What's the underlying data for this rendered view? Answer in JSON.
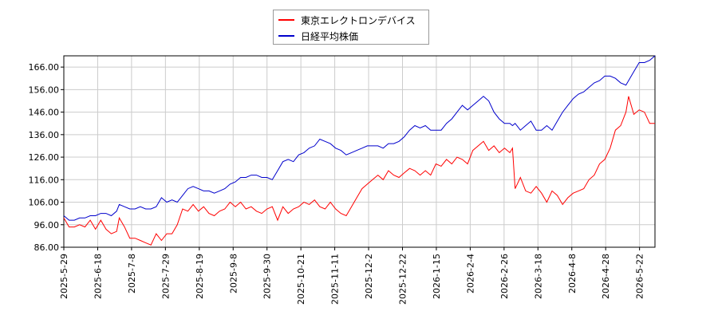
{
  "chart_data": {
    "type": "line",
    "legend_position": "top-center",
    "grid": true,
    "ylim": [
      86.0,
      171.0
    ],
    "yticks": [
      "86.00",
      "96.00",
      "106.00",
      "116.00",
      "126.00",
      "136.00",
      "146.00",
      "156.00",
      "166.00"
    ],
    "xticks": [
      "2025-5-29",
      "2025-6-18",
      "2025-7-8",
      "2025-7-29",
      "2025-8-19",
      "2025-9-8",
      "2025-9-30",
      "2025-10-21",
      "2025-11-11",
      "2025-12-2",
      "2025-12-22",
      "2026-1-15",
      "2026-2-4",
      "2026-2-26",
      "2026-3-18",
      "2026-4-8",
      "2026-4-28",
      "2026-5-22"
    ],
    "series": [
      {
        "name": "東京エレクトロンデバイス",
        "color": "#ff0000",
        "values": [
          [
            0,
            99
          ],
          [
            2,
            95
          ],
          [
            4,
            95
          ],
          [
            6,
            96
          ],
          [
            8,
            95
          ],
          [
            10,
            98
          ],
          [
            12,
            94
          ],
          [
            14,
            98
          ],
          [
            16,
            94
          ],
          [
            18,
            92
          ],
          [
            20,
            93
          ],
          [
            21,
            99
          ],
          [
            23,
            95
          ],
          [
            25,
            90
          ],
          [
            27,
            90
          ],
          [
            29,
            89
          ],
          [
            31,
            88
          ],
          [
            33,
            87
          ],
          [
            35,
            92
          ],
          [
            37,
            89
          ],
          [
            39,
            92
          ],
          [
            41,
            92
          ],
          [
            43,
            96
          ],
          [
            45,
            103
          ],
          [
            47,
            102
          ],
          [
            49,
            105
          ],
          [
            51,
            102
          ],
          [
            53,
            104
          ],
          [
            55,
            101
          ],
          [
            57,
            100
          ],
          [
            59,
            102
          ],
          [
            61,
            103
          ],
          [
            63,
            106
          ],
          [
            65,
            104
          ],
          [
            67,
            106
          ],
          [
            69,
            103
          ],
          [
            71,
            104
          ],
          [
            73,
            102
          ],
          [
            75,
            101
          ],
          [
            77,
            103
          ],
          [
            79,
            104
          ],
          [
            81,
            98
          ],
          [
            83,
            104
          ],
          [
            85,
            101
          ],
          [
            87,
            103
          ],
          [
            89,
            104
          ],
          [
            91,
            106
          ],
          [
            93,
            105
          ],
          [
            95,
            107
          ],
          [
            97,
            104
          ],
          [
            99,
            103
          ],
          [
            101,
            106
          ],
          [
            103,
            103
          ],
          [
            105,
            101
          ],
          [
            107,
            100
          ],
          [
            109,
            104
          ],
          [
            111,
            108
          ],
          [
            113,
            112
          ],
          [
            115,
            114
          ],
          [
            117,
            116
          ],
          [
            119,
            118
          ],
          [
            121,
            116
          ],
          [
            123,
            120
          ],
          [
            125,
            118
          ],
          [
            127,
            117
          ],
          [
            129,
            119
          ],
          [
            131,
            121
          ],
          [
            133,
            120
          ],
          [
            135,
            118
          ],
          [
            137,
            120
          ],
          [
            139,
            118
          ],
          [
            141,
            123
          ],
          [
            143,
            122
          ],
          [
            145,
            125
          ],
          [
            147,
            123
          ],
          [
            149,
            126
          ],
          [
            151,
            125
          ],
          [
            153,
            123
          ],
          [
            155,
            129
          ],
          [
            157,
            131
          ],
          [
            159,
            133
          ],
          [
            161,
            129
          ],
          [
            163,
            131
          ],
          [
            165,
            128
          ],
          [
            167,
            130
          ],
          [
            169,
            128
          ],
          [
            170,
            130
          ],
          [
            171,
            112
          ],
          [
            173,
            117
          ],
          [
            175,
            111
          ],
          [
            177,
            110
          ],
          [
            179,
            113
          ],
          [
            181,
            110
          ],
          [
            183,
            106
          ],
          [
            185,
            111
          ],
          [
            187,
            109
          ],
          [
            189,
            105
          ],
          [
            191,
            108
          ],
          [
            193,
            110
          ],
          [
            195,
            111
          ],
          [
            197,
            112
          ],
          [
            199,
            116
          ],
          [
            201,
            118
          ],
          [
            203,
            123
          ],
          [
            205,
            125
          ],
          [
            207,
            130
          ],
          [
            209,
            138
          ],
          [
            211,
            140
          ],
          [
            213,
            146
          ],
          [
            214,
            153
          ],
          [
            216,
            145
          ],
          [
            218,
            147
          ],
          [
            220,
            146
          ],
          [
            222,
            141
          ],
          [
            224,
            141
          ]
        ]
      },
      {
        "name": "日経平均株価",
        "color": "#0000cc",
        "values": [
          [
            0,
            100
          ],
          [
            2,
            98
          ],
          [
            4,
            98
          ],
          [
            6,
            99
          ],
          [
            8,
            99
          ],
          [
            10,
            100
          ],
          [
            12,
            100
          ],
          [
            14,
            101
          ],
          [
            16,
            101
          ],
          [
            18,
            100
          ],
          [
            20,
            102
          ],
          [
            21,
            105
          ],
          [
            23,
            104
          ],
          [
            25,
            103
          ],
          [
            27,
            103
          ],
          [
            29,
            104
          ],
          [
            31,
            103
          ],
          [
            33,
            103
          ],
          [
            35,
            104
          ],
          [
            37,
            108
          ],
          [
            39,
            106
          ],
          [
            41,
            107
          ],
          [
            43,
            106
          ],
          [
            45,
            109
          ],
          [
            47,
            112
          ],
          [
            49,
            113
          ],
          [
            51,
            112
          ],
          [
            53,
            111
          ],
          [
            55,
            111
          ],
          [
            57,
            110
          ],
          [
            59,
            111
          ],
          [
            61,
            112
          ],
          [
            63,
            114
          ],
          [
            65,
            115
          ],
          [
            67,
            117
          ],
          [
            69,
            117
          ],
          [
            71,
            118
          ],
          [
            73,
            118
          ],
          [
            75,
            117
          ],
          [
            77,
            117
          ],
          [
            79,
            116
          ],
          [
            81,
            120
          ],
          [
            83,
            124
          ],
          [
            85,
            125
          ],
          [
            87,
            124
          ],
          [
            89,
            127
          ],
          [
            91,
            128
          ],
          [
            93,
            130
          ],
          [
            95,
            131
          ],
          [
            97,
            134
          ],
          [
            99,
            133
          ],
          [
            101,
            132
          ],
          [
            103,
            130
          ],
          [
            105,
            129
          ],
          [
            107,
            127
          ],
          [
            109,
            128
          ],
          [
            111,
            129
          ],
          [
            113,
            130
          ],
          [
            115,
            131
          ],
          [
            117,
            131
          ],
          [
            119,
            131
          ],
          [
            121,
            130
          ],
          [
            123,
            132
          ],
          [
            125,
            132
          ],
          [
            127,
            133
          ],
          [
            129,
            135
          ],
          [
            131,
            138
          ],
          [
            133,
            140
          ],
          [
            135,
            139
          ],
          [
            137,
            140
          ],
          [
            139,
            138
          ],
          [
            141,
            138
          ],
          [
            143,
            138
          ],
          [
            145,
            141
          ],
          [
            147,
            143
          ],
          [
            149,
            146
          ],
          [
            151,
            149
          ],
          [
            153,
            147
          ],
          [
            155,
            149
          ],
          [
            157,
            151
          ],
          [
            159,
            153
          ],
          [
            161,
            151
          ],
          [
            163,
            146
          ],
          [
            165,
            143
          ],
          [
            167,
            141
          ],
          [
            169,
            141
          ],
          [
            170,
            140
          ],
          [
            171,
            141
          ],
          [
            173,
            138
          ],
          [
            175,
            140
          ],
          [
            177,
            142
          ],
          [
            179,
            138
          ],
          [
            181,
            138
          ],
          [
            183,
            140
          ],
          [
            185,
            138
          ],
          [
            187,
            142
          ],
          [
            189,
            146
          ],
          [
            191,
            149
          ],
          [
            193,
            152
          ],
          [
            195,
            154
          ],
          [
            197,
            155
          ],
          [
            199,
            157
          ],
          [
            201,
            159
          ],
          [
            203,
            160
          ],
          [
            205,
            162
          ],
          [
            207,
            162
          ],
          [
            209,
            161
          ],
          [
            211,
            159
          ],
          [
            213,
            158
          ],
          [
            214,
            160
          ],
          [
            216,
            164
          ],
          [
            218,
            168
          ],
          [
            220,
            168
          ],
          [
            222,
            169
          ],
          [
            224,
            171
          ]
        ]
      }
    ]
  }
}
